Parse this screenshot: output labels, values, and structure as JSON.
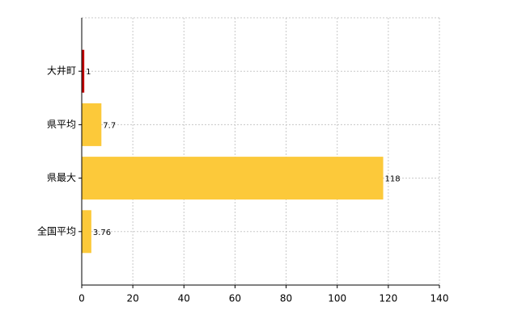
{
  "chart_data": {
    "type": "hbar",
    "categories": [
      "大井町",
      "県平均",
      "県最大",
      "全国平均"
    ],
    "values": [
      1,
      7.7,
      118,
      3.76
    ],
    "colors": [
      "#c00000",
      "#fcc93a",
      "#fcc93a",
      "#fcc93a"
    ],
    "xlim": [
      0,
      140
    ],
    "xticks": [
      0,
      20,
      40,
      60,
      80,
      100,
      120,
      140
    ],
    "grid": true
  }
}
